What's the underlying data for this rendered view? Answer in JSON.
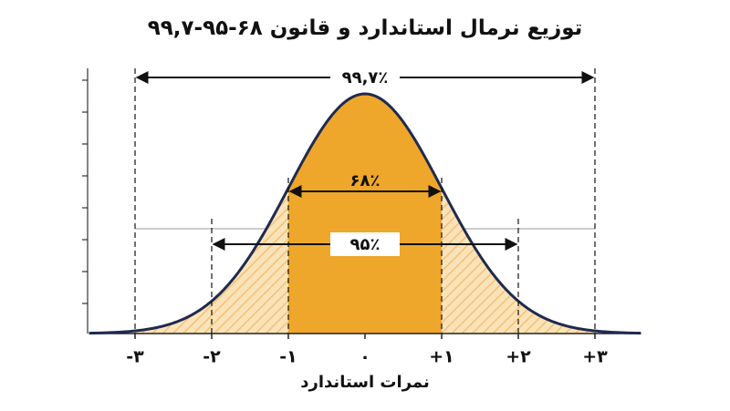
{
  "chart_data": {
    "type": "normal",
    "title": "توزیع نرمال استاندارد و قانون ۶۸-۹۵-۹۹,۷",
    "x_label": "نمرات استاندارد",
    "xlim": [
      -3.6,
      3.6
    ],
    "xticks": [
      {
        "value": -3,
        "label": "-۳"
      },
      {
        "value": -2,
        "label": "-۲"
      },
      {
        "value": -1,
        "label": "-۱"
      },
      {
        "value": 0,
        "label": "۰"
      },
      {
        "value": 1,
        "label": "+۱"
      },
      {
        "value": 2,
        "label": "+۲"
      },
      {
        "value": 3,
        "label": "+۳"
      }
    ],
    "spans": [
      {
        "label": "۹۹,۷٪",
        "from": -3,
        "to": 3
      },
      {
        "label": "۶۸٪",
        "from": -1,
        "to": 1
      },
      {
        "label": "۹۵٪",
        "from": -2,
        "to": 2
      }
    ],
    "color": "#eea72a",
    "line_color": "#1f2a4f"
  }
}
